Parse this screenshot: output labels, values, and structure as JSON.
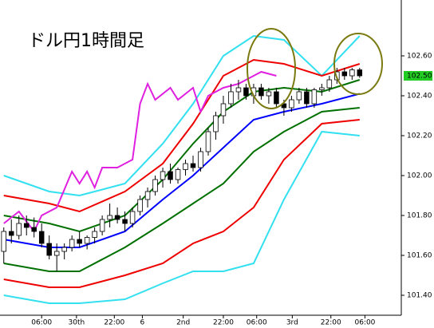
{
  "chart_data": {
    "type": "candlestick",
    "title": "ドル円1時間足",
    "xlim": [
      -0.5,
      52.5
    ],
    "ylim": [
      101.3,
      102.88
    ],
    "yticks": [
      {
        "value": 101.4,
        "label": "101.40"
      },
      {
        "value": 101.6,
        "label": "101.60"
      },
      {
        "value": 101.8,
        "label": "101.80"
      },
      {
        "value": 102.0,
        "label": "102.00"
      },
      {
        "value": 102.2,
        "label": "102.20"
      },
      {
        "value": 102.4,
        "label": "102.40"
      },
      {
        "value": 102.6,
        "label": "102.60"
      }
    ],
    "xticks": [
      {
        "value": 5,
        "label": "06:00"
      },
      {
        "value": 9.6,
        "label": "30th"
      },
      {
        "value": 14.6,
        "label": "22:00"
      },
      {
        "value": 18.3,
        "label": "6"
      },
      {
        "value": 23.7,
        "label": "2nd"
      },
      {
        "value": 29,
        "label": "22:00"
      },
      {
        "value": 33.4,
        "label": "06:00"
      },
      {
        "value": 38.1,
        "label": "3rd"
      },
      {
        "value": 43.2,
        "label": "22:00"
      },
      {
        "value": 47.7,
        "label": "06:00"
      }
    ],
    "last_price": {
      "value": 102.5,
      "label": "102.50"
    },
    "x": [
      0,
      1,
      2,
      3,
      4,
      5,
      6,
      7,
      8,
      9,
      10,
      11,
      12,
      13,
      14,
      15,
      16,
      17,
      18,
      19,
      20,
      21,
      22,
      23,
      24,
      25,
      26,
      27,
      28,
      29,
      30,
      31,
      32,
      33,
      34,
      35,
      36,
      37,
      38,
      39,
      40,
      41,
      42,
      43,
      44,
      45,
      46,
      47
    ],
    "open": [
      101.62,
      101.72,
      101.7,
      101.76,
      101.74,
      101.72,
      101.66,
      101.6,
      101.62,
      101.64,
      101.68,
      101.66,
      101.69,
      101.72,
      101.78,
      101.8,
      101.78,
      101.76,
      101.82,
      101.88,
      101.92,
      101.98,
      102.02,
      101.98,
      102.03,
      102.06,
      102.04,
      102.12,
      102.22,
      102.3,
      102.36,
      102.42,
      102.44,
      102.4,
      102.44,
      102.4,
      102.42,
      102.36,
      102.34,
      102.38,
      102.42,
      102.36,
      102.43,
      102.44,
      102.48,
      102.52,
      102.5,
      102.53
    ],
    "high": [
      101.74,
      101.78,
      101.8,
      101.8,
      101.79,
      101.76,
      101.7,
      101.66,
      101.66,
      101.7,
      101.72,
      101.7,
      101.74,
      101.8,
      101.86,
      101.84,
      101.82,
      101.84,
      101.9,
      101.94,
      102.0,
      102.04,
      102.06,
      102.04,
      102.08,
      102.1,
      102.14,
      102.24,
      102.32,
      102.4,
      102.46,
      102.48,
      102.46,
      102.46,
      102.46,
      102.44,
      102.44,
      102.38,
      102.4,
      102.44,
      102.44,
      102.44,
      102.46,
      102.5,
      102.54,
      102.54,
      102.54,
      102.54
    ],
    "low": [
      101.56,
      101.66,
      101.68,
      101.7,
      101.69,
      101.64,
      101.58,
      101.52,
      101.58,
      101.62,
      101.64,
      101.63,
      101.66,
      101.7,
      101.74,
      101.76,
      101.72,
      101.74,
      101.8,
      101.84,
      101.9,
      101.94,
      101.96,
      101.96,
      102.0,
      102.02,
      102.02,
      102.1,
      102.18,
      102.26,
      102.34,
      102.38,
      102.38,
      102.36,
      102.38,
      102.36,
      102.34,
      102.3,
      102.32,
      102.36,
      102.34,
      102.34,
      102.4,
      102.42,
      102.46,
      102.48,
      102.48,
      102.49
    ],
    "close": [
      101.72,
      101.7,
      101.76,
      101.74,
      101.72,
      101.66,
      101.6,
      101.62,
      101.64,
      101.68,
      101.66,
      101.69,
      101.72,
      101.78,
      101.8,
      101.78,
      101.76,
      101.82,
      101.88,
      101.92,
      101.98,
      102.02,
      101.98,
      102.03,
      102.06,
      102.04,
      102.12,
      102.22,
      102.3,
      102.36,
      102.42,
      102.44,
      102.4,
      102.44,
      102.4,
      102.42,
      102.36,
      102.34,
      102.38,
      102.42,
      102.36,
      102.43,
      102.44,
      102.48,
      102.52,
      102.5,
      102.53,
      102.5
    ],
    "series": [
      {
        "color": "#33e0f0",
        "x": [
          0,
          6,
          10,
          16,
          21,
          25,
          29,
          33,
          37,
          42,
          47
        ],
        "values": [
          102.0,
          101.92,
          101.9,
          101.96,
          102.16,
          102.36,
          102.6,
          102.7,
          102.68,
          102.5,
          102.7
        ]
      },
      {
        "color": "#33e0f0",
        "x": [
          0,
          6,
          10,
          16,
          21,
          25,
          29,
          33,
          37,
          42,
          47
        ],
        "values": [
          101.4,
          101.36,
          101.36,
          101.38,
          101.46,
          101.52,
          101.52,
          101.56,
          101.88,
          102.22,
          102.2
        ]
      },
      {
        "color": "#ee0000",
        "x": [
          0,
          6,
          10,
          16,
          21,
          25,
          29,
          33,
          37,
          42,
          47
        ],
        "values": [
          101.9,
          101.86,
          101.82,
          101.92,
          102.06,
          102.26,
          102.5,
          102.58,
          102.56,
          102.5,
          102.56
        ]
      },
      {
        "color": "#ee0000",
        "x": [
          0,
          6,
          10,
          16,
          21,
          25,
          29,
          33,
          37,
          42,
          47
        ],
        "values": [
          101.48,
          101.44,
          101.44,
          101.5,
          101.56,
          101.66,
          101.72,
          101.84,
          102.08,
          102.26,
          102.28
        ]
      },
      {
        "color": "#007000",
        "x": [
          0,
          6,
          10,
          16,
          21,
          25,
          29,
          33,
          37,
          42,
          47
        ],
        "values": [
          101.8,
          101.76,
          101.72,
          101.8,
          101.98,
          102.16,
          102.32,
          102.42,
          102.44,
          102.42,
          102.48
        ]
      },
      {
        "color": "#007000",
        "x": [
          0,
          6,
          10,
          16,
          21,
          25,
          29,
          33,
          37,
          42,
          47
        ],
        "values": [
          101.56,
          101.52,
          101.52,
          101.64,
          101.76,
          101.86,
          101.96,
          102.12,
          102.22,
          102.32,
          102.34
        ]
      },
      {
        "color": "#0000ff",
        "x": [
          0,
          6,
          10,
          16,
          21,
          25,
          29,
          33,
          37,
          42,
          47
        ],
        "values": [
          101.68,
          101.64,
          101.64,
          101.72,
          101.88,
          102.0,
          102.14,
          102.28,
          102.32,
          102.36,
          102.41
        ]
      },
      {
        "color": "#e020e0",
        "x": [
          0,
          2,
          4,
          5,
          7,
          9,
          10,
          11,
          12,
          13,
          15,
          17,
          18,
          19,
          20,
          22,
          23,
          25,
          26,
          27,
          29,
          31,
          32,
          34,
          36
        ],
        "values": [
          101.76,
          101.82,
          101.72,
          101.8,
          101.84,
          102.02,
          101.96,
          102.02,
          101.94,
          102.04,
          102.04,
          102.08,
          102.36,
          102.46,
          102.38,
          102.44,
          102.38,
          102.44,
          102.32,
          102.4,
          102.44,
          102.46,
          102.48,
          102.52,
          102.5
        ]
      }
    ]
  }
}
